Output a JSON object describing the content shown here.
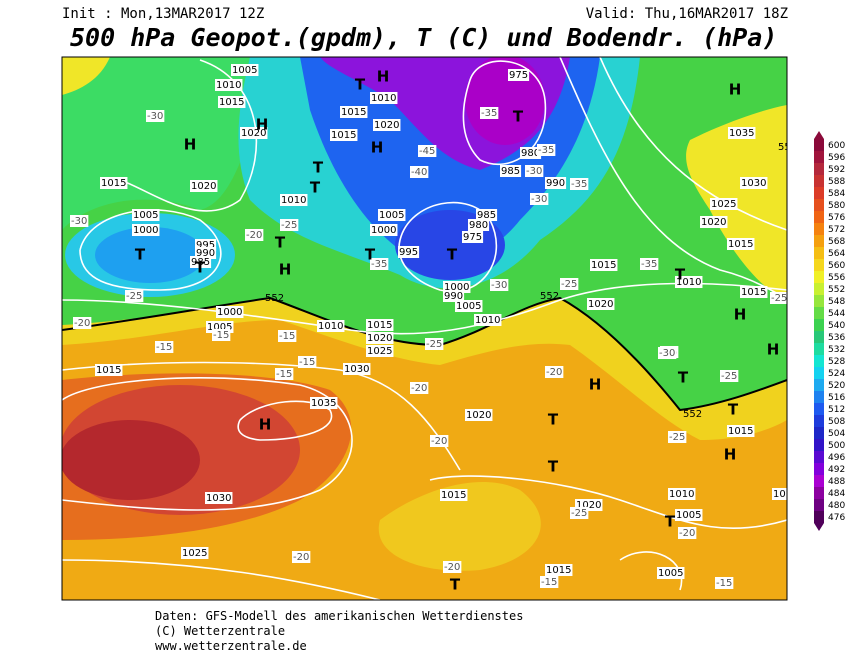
{
  "header": {
    "init": "Init : Mon,13MAR2017 12Z",
    "valid": "Valid: Thu,16MAR2017 18Z",
    "title": "500 hPa Geopot.(gpdm), T (C) und Bodendr. (hPa)"
  },
  "footer": [
    "Daten: GFS-Modell des amerikanischen Wetterdienstes",
    "(C) Wetterzentrale",
    "www.wetterzentrale.de"
  ],
  "colorbar": {
    "levels": [
      600,
      596,
      592,
      588,
      584,
      580,
      576,
      572,
      568,
      564,
      560,
      556,
      552,
      548,
      544,
      540,
      536,
      532,
      528,
      524,
      520,
      516,
      512,
      508,
      504,
      500,
      496,
      492,
      488,
      484,
      480,
      476
    ],
    "colors": [
      "#8b0a3a",
      "#a0143c",
      "#b4283c",
      "#c83232",
      "#dc3c28",
      "#e6501e",
      "#f06414",
      "#f5820f",
      "#f5a00f",
      "#f5be14",
      "#f5d71e",
      "#f0f028",
      "#c8f032",
      "#96e63c",
      "#64dc46",
      "#3cd250",
      "#28c878",
      "#1edca0",
      "#14e6d2",
      "#14d2f0",
      "#1eaaf0",
      "#1e82f0",
      "#1e5af0",
      "#1e3cdc",
      "#1e28c8",
      "#3214c8",
      "#5a0ad2",
      "#8200dc",
      "#aa00d2",
      "#8c00a0",
      "#6e0082",
      "#50005a"
    ]
  },
  "map": {
    "pressure_centers": [
      "H",
      "H",
      "H",
      "H",
      "H",
      "H",
      "H",
      "H",
      "H",
      "H",
      "H",
      "T",
      "T",
      "T",
      "T",
      "T",
      "T",
      "T",
      "T",
      "T",
      "T",
      "T",
      "T",
      "T",
      "T",
      "T",
      "T"
    ],
    "isobar_labels": [
      "1005",
      "1010",
      "1015",
      "1020",
      "1015",
      "1020",
      "1005",
      "1000",
      "995",
      "990",
      "985",
      "1010",
      "1005",
      "1000",
      "995",
      "1015",
      "1020",
      "1015",
      "1010",
      "975",
      "980",
      "985",
      "990",
      "985",
      "980",
      "975",
      "1015",
      "1010",
      "1020",
      "1015",
      "1035",
      "1030",
      "1025",
      "1020",
      "1015",
      "1000",
      "1005",
      "1010",
      "1015",
      "1020",
      "1025",
      "1030",
      "1035",
      "1015",
      "1030",
      "1025",
      "1020",
      "1015",
      "1020",
      "1010",
      "1005",
      "1005",
      "1015",
      "1015",
      "1015",
      "1000",
      "990",
      "1005",
      "1010"
    ],
    "temperature_labels": [
      "-30",
      "-30",
      "-25",
      "-20",
      "-25",
      "-20",
      "-15",
      "-15",
      "-15",
      "-15",
      "-15",
      "-20",
      "-25",
      "-30",
      "-35",
      "-40",
      "-45",
      "-35",
      "-35",
      "-30",
      "-35",
      "-35",
      "-30",
      "-25",
      "-20",
      "-25",
      "-20",
      "-25",
      "-20",
      "-20",
      "-20",
      "-15",
      "-15",
      "-25",
      "-25",
      "-30",
      "-25"
    ],
    "contour_labels": [
      "552",
      "552",
      "552",
      "55"
    ]
  }
}
